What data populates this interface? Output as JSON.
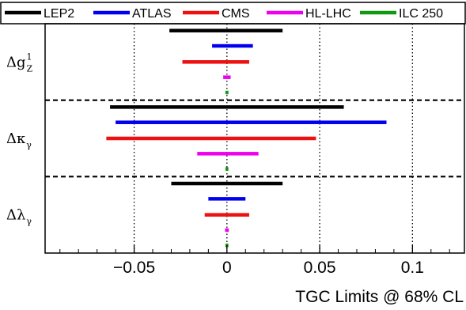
{
  "chart_data": {
    "type": "bar",
    "orientation": "horizontal-interval",
    "xlabel": "TGC Limits @ 68% CL",
    "xlim": [
      -0.098,
      0.128
    ],
    "xticks": [
      {
        "value": -0.05,
        "label": "−0.05"
      },
      {
        "value": 0,
        "label": "0"
      },
      {
        "value": 0.05,
        "label": "0.05"
      },
      {
        "value": 0.1,
        "label": "0.1"
      }
    ],
    "vertical_dotted_gridlines_at": [
      -0.05,
      0,
      0.05,
      0.1
    ],
    "legend": {
      "placement": "top",
      "entries": [
        {
          "name": "LEP2",
          "color": "#000000"
        },
        {
          "name": "ATLAS",
          "color": "#0000ee"
        },
        {
          "name": "CMS",
          "color": "#ee1111"
        },
        {
          "name": "HL-LHC",
          "color": "#ee00ee"
        },
        {
          "name": "ILC 250",
          "color": "#119911"
        }
      ]
    },
    "groups": [
      {
        "label_main": "Δg",
        "label_sub": "Z",
        "label_sup": "1",
        "intervals": [
          {
            "series": "LEP2",
            "low": -0.031,
            "high": 0.03
          },
          {
            "series": "ATLAS",
            "low": -0.008,
            "high": 0.014
          },
          {
            "series": "CMS",
            "low": -0.024,
            "high": 0.012
          },
          {
            "series": "HL-LHC",
            "low": -0.002,
            "high": 0.002
          },
          {
            "series": "ILC 250",
            "low": -0.0008,
            "high": 0.0008
          }
        ]
      },
      {
        "label_main": "Δκ",
        "label_sub": "γ",
        "label_sup": "",
        "intervals": [
          {
            "series": "LEP2",
            "low": -0.063,
            "high": 0.063
          },
          {
            "series": "ATLAS",
            "low": -0.06,
            "high": 0.086
          },
          {
            "series": "CMS",
            "low": -0.065,
            "high": 0.048
          },
          {
            "series": "HL-LHC",
            "low": -0.016,
            "high": 0.017
          },
          {
            "series": "ILC 250",
            "low": -0.0008,
            "high": 0.0008
          }
        ]
      },
      {
        "label_main": "Δλ",
        "label_sub": "γ",
        "label_sup": "",
        "intervals": [
          {
            "series": "LEP2",
            "low": -0.03,
            "high": 0.03
          },
          {
            "series": "ATLAS",
            "low": -0.01,
            "high": 0.01
          },
          {
            "series": "CMS",
            "low": -0.012,
            "high": 0.012
          },
          {
            "series": "HL-LHC",
            "low": -0.001,
            "high": 0.001
          },
          {
            "series": "ILC 250",
            "low": -0.0008,
            "high": 0.0008
          }
        ]
      }
    ]
  }
}
